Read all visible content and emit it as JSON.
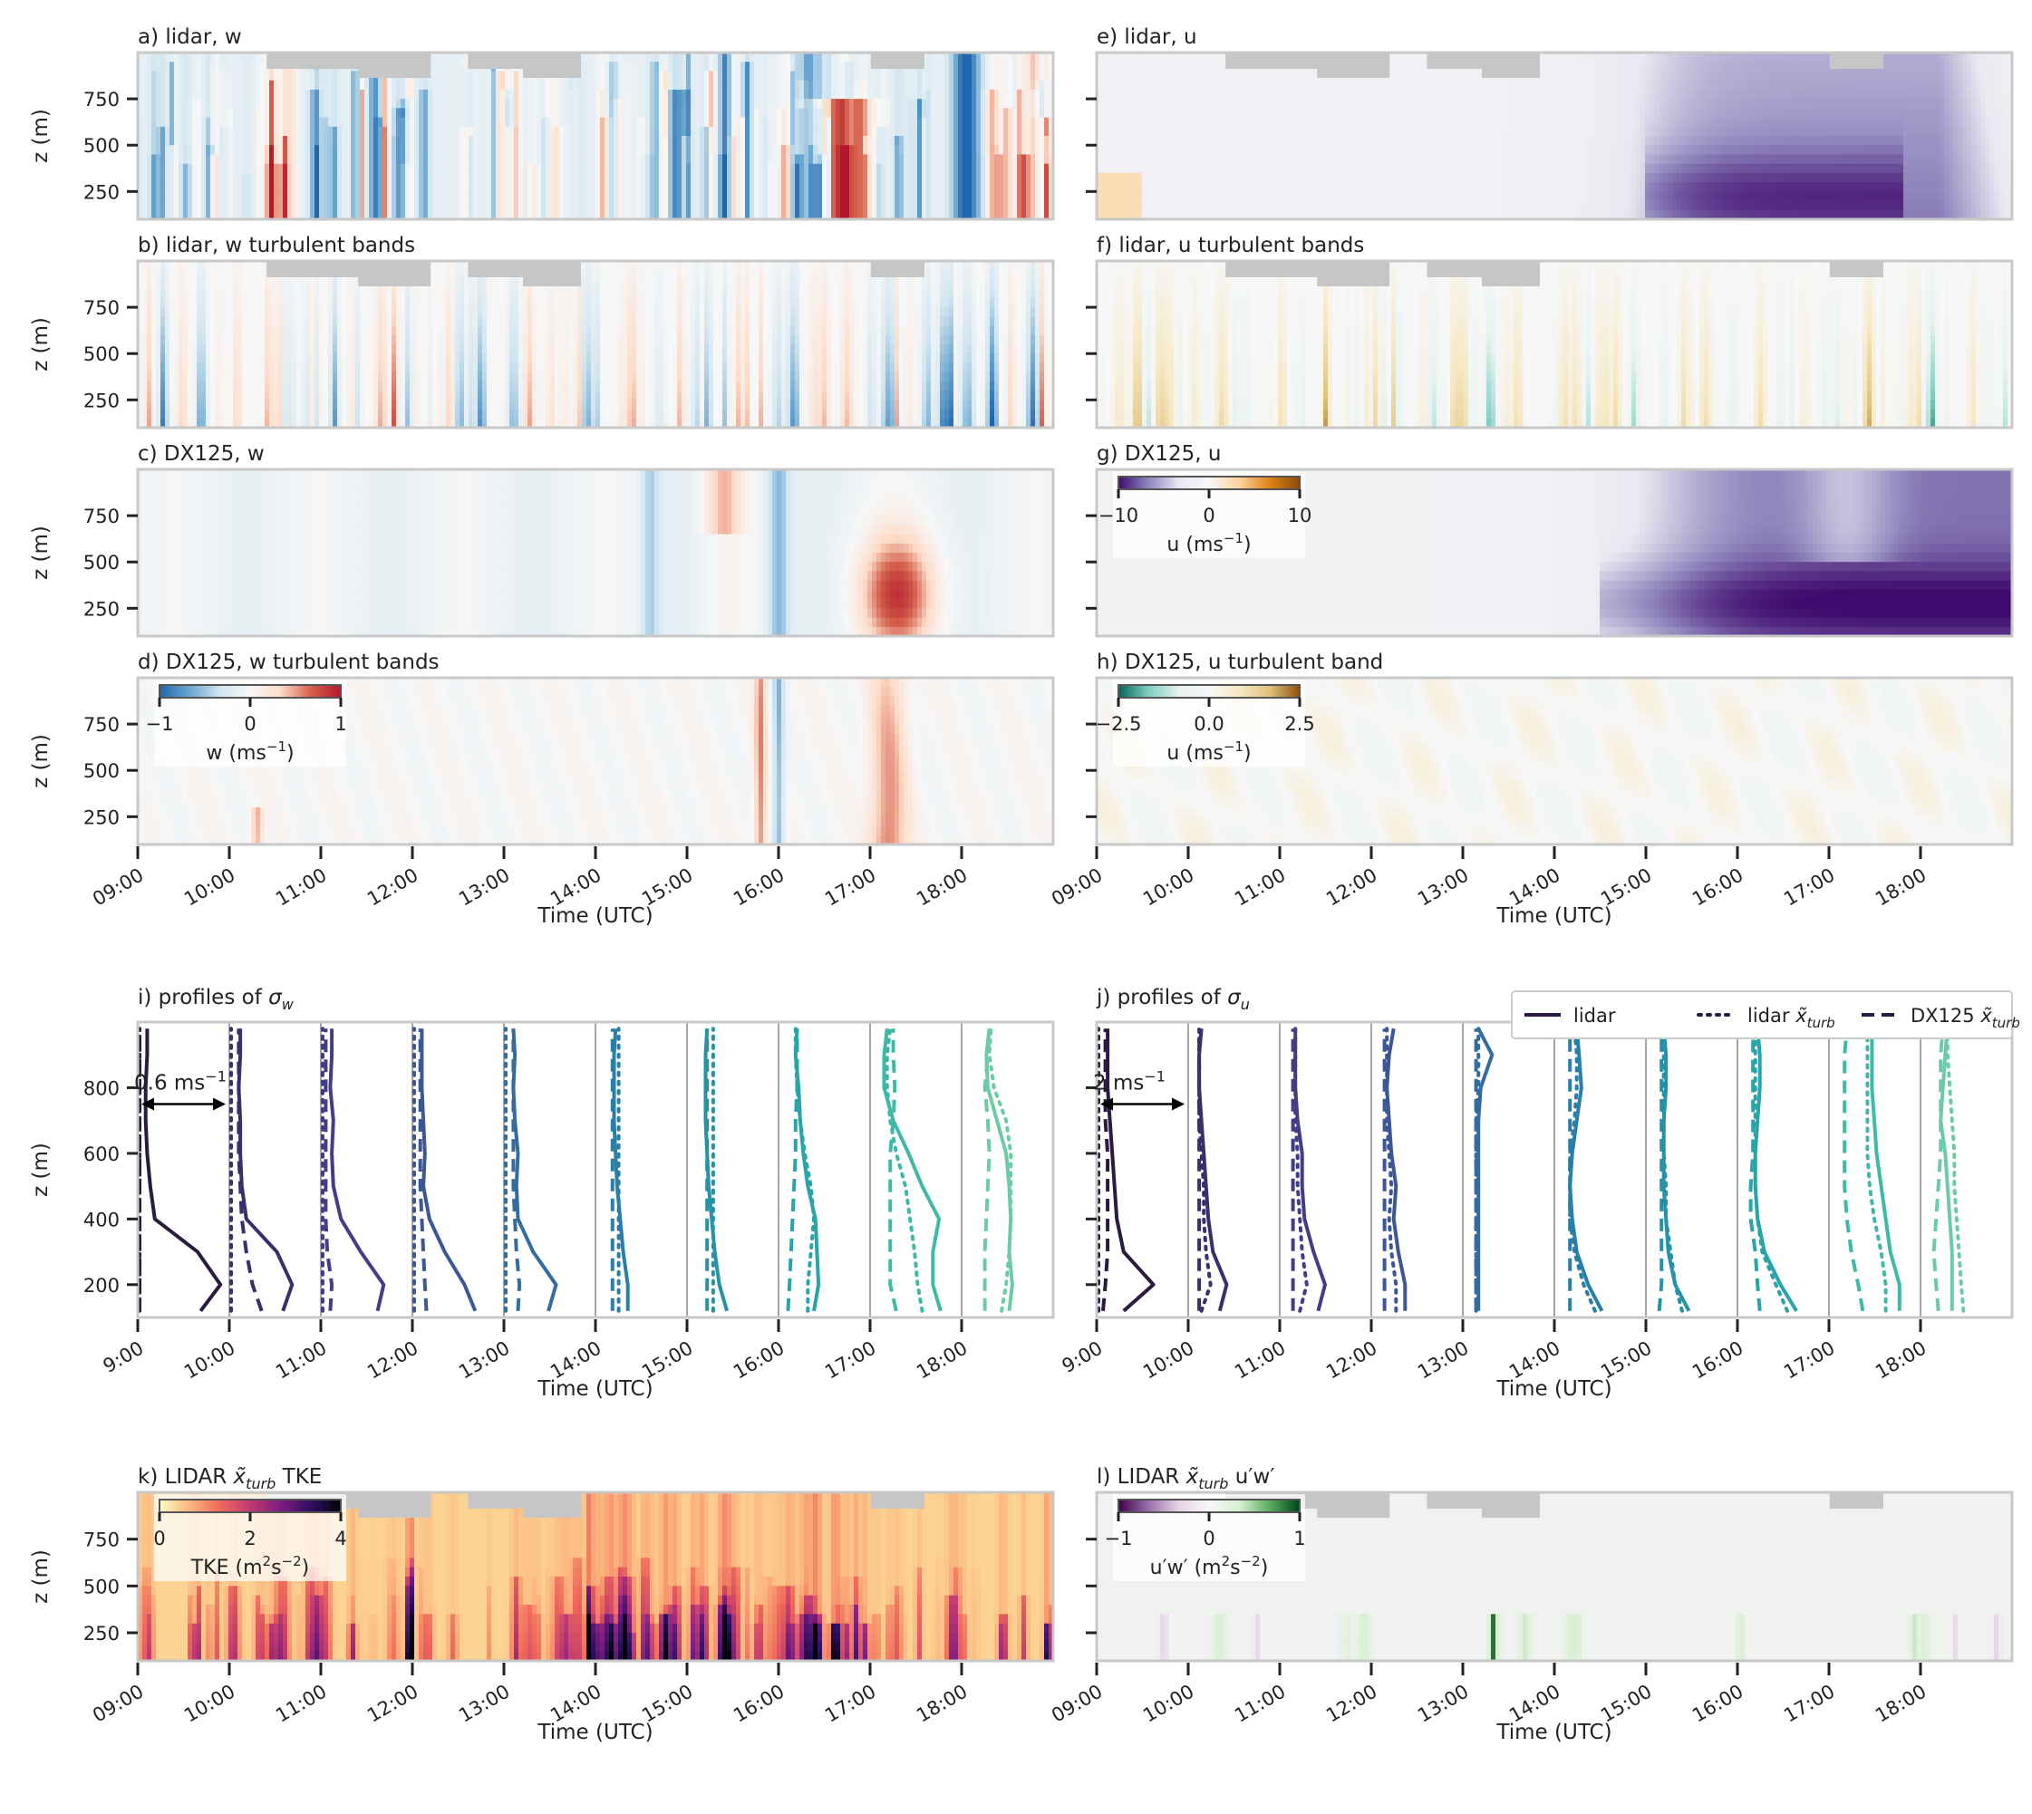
{
  "figure": {
    "time_ticks": [
      "09:00",
      "10:00",
      "11:00",
      "12:00",
      "13:00",
      "14:00",
      "15:00",
      "16:00",
      "17:00",
      "18:00"
    ],
    "time_ticks_profiles": [
      "9:00",
      "10:00",
      "11:00",
      "12:00",
      "13:00",
      "14:00",
      "15:00",
      "16:00",
      "17:00",
      "18:00"
    ],
    "xlabel": "Time (UTC)",
    "ylabel": "z (m)",
    "z_ticks_fields": [
      250,
      500,
      750
    ],
    "z_ticks_profiles": [
      200,
      400,
      600,
      800
    ],
    "colors": {
      "frame": "#c8c8c8",
      "missing": "#c6c6c6"
    }
  },
  "chart_data": [
    {
      "id": "a",
      "type": "heatmap",
      "title": "a) lidar, w",
      "variable": "w",
      "cmap": "RdBu_r",
      "vmin": -1,
      "vmax": 1,
      "xlim": [
        "09:00",
        "19:00"
      ],
      "ylim": [
        100,
        1000
      ]
    },
    {
      "id": "b",
      "type": "heatmap",
      "title": "b) lidar, w turbulent bands",
      "variable": "w",
      "cmap": "RdBu_r",
      "vmin": -1,
      "vmax": 1,
      "xlim": [
        "09:00",
        "19:00"
      ],
      "ylim": [
        100,
        1000
      ]
    },
    {
      "id": "c",
      "type": "heatmap",
      "title": "c) DX125, w",
      "variable": "w",
      "cmap": "RdBu_r",
      "vmin": -1,
      "vmax": 1,
      "xlim": [
        "09:00",
        "19:00"
      ],
      "ylim": [
        100,
        1000
      ]
    },
    {
      "id": "d",
      "type": "heatmap",
      "title": "d) DX125, w turbulent bands",
      "variable": "w",
      "cmap": "RdBu_r",
      "vmin": -1,
      "vmax": 1,
      "xlim": [
        "09:00",
        "19:00"
      ],
      "ylim": [
        100,
        1000
      ],
      "colorbar": {
        "ticks": [
          "−1",
          "0",
          "1"
        ],
        "label": "w (ms",
        "sup": "−1",
        "stops": [
          "#2166ac",
          "#6aa6d0",
          "#d1e5f0",
          "#f7f7f7",
          "#fddbc7",
          "#d6604d",
          "#b2182b"
        ]
      }
    },
    {
      "id": "e",
      "type": "heatmap",
      "title": "e) lidar, u",
      "variable": "u",
      "cmap": "PuOr_r",
      "vmin": -12,
      "vmax": 12,
      "xlim": [
        "09:00",
        "19:00"
      ],
      "ylim": [
        100,
        1000
      ]
    },
    {
      "id": "f",
      "type": "heatmap",
      "title": "f) lidar, u turbulent bands",
      "variable": "u",
      "cmap": "BrBG_r",
      "vmin": -3,
      "vmax": 3,
      "xlim": [
        "09:00",
        "19:00"
      ],
      "ylim": [
        100,
        1000
      ]
    },
    {
      "id": "g",
      "type": "heatmap",
      "title": "g) DX125, u",
      "variable": "u",
      "cmap": "PuOr_r",
      "vmin": -12,
      "vmax": 12,
      "xlim": [
        "09:00",
        "19:00"
      ],
      "ylim": [
        100,
        1000
      ],
      "colorbar": {
        "ticks": [
          "−10",
          "0",
          "10"
        ],
        "label": "u (ms",
        "sup": "−1",
        "stops": [
          "#3f0a6e",
          "#8f86bd",
          "#e9e8f1",
          "#f7f7f7",
          "#fdd49e",
          "#e08214",
          "#8c4a0a"
        ]
      }
    },
    {
      "id": "h",
      "type": "heatmap",
      "title": "h) DX125, u turbulent band",
      "variable": "u",
      "cmap": "BrBG_r",
      "vmin": -3,
      "vmax": 3,
      "xlim": [
        "09:00",
        "19:00"
      ],
      "ylim": [
        100,
        1000
      ],
      "colorbar": {
        "ticks": [
          "−2.5",
          "0.0",
          "2.5"
        ],
        "label": "u (ms",
        "sup": "−1",
        "stops": [
          "#01665e",
          "#80cdc1",
          "#e6f3ef",
          "#f7f7f7",
          "#f6e8c3",
          "#dfc27d",
          "#8c510a"
        ]
      }
    },
    {
      "id": "i",
      "type": "line",
      "title": "i) profiles of",
      "title_sym": "σ",
      "title_sub": "w",
      "annotation": "0.6 ms",
      "annotation_sup": "−1",
      "scale_per_hour": 0.6,
      "ylim": [
        100,
        1000
      ],
      "start_hours": [
        "09:00",
        "10:00",
        "11:00",
        "12:00",
        "13:00",
        "14:00",
        "15:00",
        "16:00",
        "17:00",
        "18:00"
      ],
      "z": [
        120,
        200,
        300,
        400,
        500,
        600,
        700,
        800,
        900,
        980
      ],
      "lidar": [
        [
          0.4,
          0.53,
          0.38,
          0.1,
          0.07,
          0.05,
          0.04,
          0.04,
          0.05,
          0.05
        ],
        [
          0.34,
          0.4,
          0.3,
          0.1,
          0.07,
          0.06,
          0.06,
          0.05,
          0.06,
          0.06
        ],
        [
          0.36,
          0.4,
          0.25,
          0.12,
          0.07,
          0.06,
          0.07,
          0.05,
          0.06,
          0.06
        ],
        [
          0.4,
          0.33,
          0.2,
          0.1,
          0.06,
          0.07,
          0.06,
          0.05,
          0.05,
          0.05
        ],
        [
          0.28,
          0.33,
          0.18,
          0.08,
          0.07,
          0.08,
          0.06,
          0.05,
          0.06,
          0.05
        ],
        [
          0.2,
          0.2,
          0.17,
          0.15,
          0.13,
          0.12,
          0.11,
          0.11,
          0.11,
          0.12
        ],
        [
          0.25,
          0.2,
          0.17,
          0.15,
          0.13,
          0.12,
          0.11,
          0.11,
          0.11,
          0.12
        ],
        [
          0.22,
          0.25,
          0.24,
          0.23,
          0.18,
          0.15,
          0.13,
          0.12,
          0.1,
          0.11
        ],
        [
          0.45,
          0.4,
          0.4,
          0.44,
          0.33,
          0.24,
          0.14,
          0.08,
          0.08,
          0.1
        ],
        [
          0.3,
          0.32,
          0.3,
          0.31,
          0.3,
          0.28,
          0.22,
          0.16,
          0.15,
          0.17
        ]
      ],
      "lidar_turb": [
        [
          0.0,
          0.0,
          0.0,
          0.0,
          0.0,
          0.0,
          0.0,
          0.0,
          0.0,
          0.0
        ],
        [
          0.0,
          0.0,
          0.0,
          0.0,
          0.0,
          0.0,
          0.0,
          0.0,
          0.0,
          0.0
        ],
        [
          0.0,
          0.0,
          0.0,
          0.0,
          0.0,
          0.0,
          0.0,
          0.0,
          0.0,
          0.0
        ],
        [
          0.0,
          0.0,
          0.0,
          0.0,
          0.0,
          0.0,
          0.0,
          0.0,
          0.0,
          0.0
        ],
        [
          0.0,
          0.0,
          0.0,
          0.0,
          0.0,
          0.0,
          0.0,
          0.0,
          0.0,
          0.0
        ],
        [
          0.14,
          0.14,
          0.14,
          0.14,
          0.14,
          0.14,
          0.14,
          0.14,
          0.14,
          0.14
        ],
        [
          0.16,
          0.16,
          0.16,
          0.16,
          0.16,
          0.16,
          0.16,
          0.16,
          0.16,
          0.16
        ],
        [
          0.18,
          0.18,
          0.2,
          0.22,
          0.2,
          0.16,
          0.13,
          0.11,
          0.1,
          0.1
        ],
        [
          0.33,
          0.3,
          0.28,
          0.25,
          0.22,
          0.16,
          0.12,
          0.1,
          0.1,
          0.12
        ],
        [
          0.25,
          0.28,
          0.3,
          0.31,
          0.31,
          0.31,
          0.28,
          0.2,
          0.17,
          0.18
        ]
      ],
      "dx125": [
        [
          0.0,
          0.0,
          0.0,
          0.0,
          0.0,
          0.0,
          0.0,
          0.0,
          0.0,
          0.0
        ],
        [
          0.2,
          0.14,
          0.1,
          0.07,
          0.06,
          0.05,
          0.05,
          0.05,
          0.05,
          0.05
        ],
        [
          0.05,
          0.06,
          0.03,
          0.02,
          0.02,
          0.02,
          0.02,
          0.02,
          0.02,
          0.02
        ],
        [
          0.08,
          0.07,
          0.06,
          0.05,
          0.04,
          0.04,
          0.04,
          0.04,
          0.04,
          0.04
        ],
        [
          0.08,
          0.09,
          0.07,
          0.06,
          0.05,
          0.05,
          0.05,
          0.05,
          0.05,
          0.05
        ],
        [
          0.1,
          0.1,
          0.1,
          0.1,
          0.1,
          0.1,
          0.1,
          0.1,
          0.1,
          0.1
        ],
        [
          0.12,
          0.12,
          0.12,
          0.12,
          0.12,
          0.12,
          0.12,
          0.12,
          0.12,
          0.12
        ],
        [
          0.05,
          0.06,
          0.07,
          0.08,
          0.09,
          0.1,
          0.1,
          0.11,
          0.11,
          0.11
        ],
        [
          0.16,
          0.12,
          0.12,
          0.12,
          0.12,
          0.12,
          0.14,
          0.15,
          0.14,
          0.14
        ],
        [
          0.14,
          0.14,
          0.14,
          0.15,
          0.16,
          0.17,
          0.16,
          0.14,
          0.16,
          0.18
        ]
      ]
    },
    {
      "id": "j",
      "type": "line",
      "title": "j) profiles of",
      "title_sym": "σ",
      "title_sub": "u",
      "annotation": "2 ms",
      "annotation_sup": "−1",
      "scale_per_hour": 2,
      "ylim": [
        100,
        1000
      ],
      "start_hours": [
        "09:00",
        "10:00",
        "11:00",
        "12:00",
        "13:00",
        "14:00",
        "15:00",
        "16:00",
        "17:00",
        "18:00"
      ],
      "z": [
        120,
        200,
        300,
        400,
        500,
        600,
        700,
        800,
        900,
        980
      ],
      "lidar": [
        [
          0.55,
          1.2,
          0.55,
          0.4,
          0.35,
          0.3,
          0.25,
          0.2,
          0.2,
          0.2
        ],
        [
          0.65,
          0.8,
          0.5,
          0.4,
          0.35,
          0.3,
          0.25,
          0.2,
          0.2,
          0.25
        ],
        [
          0.8,
          0.95,
          0.7,
          0.5,
          0.45,
          0.45,
          0.35,
          0.3,
          0.3,
          0.3
        ],
        [
          0.7,
          0.7,
          0.55,
          0.45,
          0.5,
          0.4,
          0.35,
          0.3,
          0.35,
          0.45
        ],
        [
          0.3,
          0.3,
          0.3,
          0.3,
          0.3,
          0.3,
          0.3,
          0.35,
          0.6,
          0.3
        ],
        [
          1.0,
          0.7,
          0.45,
          0.35,
          0.3,
          0.35,
          0.45,
          0.55,
          0.5,
          0.45
        ],
        [
          0.9,
          0.6,
          0.45,
          0.4,
          0.35,
          0.35,
          0.35,
          0.4,
          0.4,
          0.35
        ],
        [
          1.25,
          0.9,
          0.55,
          0.4,
          0.35,
          0.35,
          0.4,
          0.45,
          0.45,
          0.4
        ],
        [
          1.5,
          1.5,
          1.3,
          1.2,
          1.1,
          1.0,
          0.95,
          0.9,
          0.9,
          0.9
        ],
        [
          0.65,
          0.65,
          0.65,
          0.6,
          0.55,
          0.5,
          0.4,
          0.45,
          0.5,
          0.55
        ]
      ],
      "lidar_turb": [
        [
          0.0,
          0.0,
          0.0,
          0.0,
          0.0,
          0.0,
          0.0,
          0.0,
          0.0,
          0.0
        ],
        [
          0.25,
          0.45,
          0.35,
          0.3,
          0.3,
          0.25,
          0.2,
          0.2,
          0.2,
          0.2
        ],
        [
          0.4,
          0.55,
          0.45,
          0.4,
          0.35,
          0.35,
          0.3,
          0.3,
          0.3,
          0.3
        ],
        [
          0.5,
          0.5,
          0.4,
          0.35,
          0.4,
          0.35,
          0.3,
          0.3,
          0.3,
          0.3
        ],
        [
          0.25,
          0.25,
          0.25,
          0.25,
          0.25,
          0.25,
          0.25,
          0.3,
          0.3,
          0.3
        ],
        [
          0.85,
          0.6,
          0.4,
          0.3,
          0.3,
          0.3,
          0.4,
          0.45,
          0.45,
          0.4
        ],
        [
          0.75,
          0.6,
          0.5,
          0.4,
          0.4,
          0.35,
          0.35,
          0.35,
          0.35,
          0.35
        ],
        [
          1.05,
          0.8,
          0.5,
          0.4,
          0.35,
          0.35,
          0.35,
          0.35,
          0.35,
          0.35
        ],
        [
          1.2,
          1.2,
          1.1,
          0.95,
          0.85,
          0.8,
          0.8,
          0.8,
          0.8,
          0.8
        ],
        [
          0.9,
          0.85,
          0.8,
          0.75,
          0.7,
          0.7,
          0.65,
          0.6,
          0.55,
          0.55
        ]
      ],
      "dx125": [
        [
          0.1,
          0.15,
          0.2,
          0.2,
          0.2,
          0.2,
          0.15,
          0.15,
          0.15,
          0.15
        ],
        [
          0.2,
          0.2,
          0.2,
          0.2,
          0.2,
          0.2,
          0.2,
          0.2,
          0.2,
          0.2
        ],
        [
          0.25,
          0.25,
          0.25,
          0.25,
          0.25,
          0.25,
          0.25,
          0.25,
          0.25,
          0.25
        ],
        [
          0.25,
          0.25,
          0.25,
          0.25,
          0.25,
          0.25,
          0.25,
          0.25,
          0.25,
          0.25
        ],
        [
          0.25,
          0.25,
          0.25,
          0.25,
          0.25,
          0.25,
          0.25,
          0.25,
          0.25,
          0.25
        ],
        [
          0.3,
          0.3,
          0.3,
          0.3,
          0.3,
          0.3,
          0.3,
          0.3,
          0.3,
          0.3
        ],
        [
          0.25,
          0.3,
          0.3,
          0.3,
          0.3,
          0.3,
          0.3,
          0.3,
          0.3,
          0.3
        ],
        [
          0.45,
          0.4,
          0.35,
          0.25,
          0.25,
          0.3,
          0.3,
          0.3,
          0.3,
          0.3
        ],
        [
          0.7,
          0.6,
          0.45,
          0.35,
          0.3,
          0.3,
          0.3,
          0.3,
          0.3,
          0.35
        ],
        [
          0.35,
          0.3,
          0.25,
          0.3,
          0.35,
          0.4,
          0.4,
          0.4,
          0.4,
          0.45
        ]
      ],
      "legend": [
        {
          "label": "lidar",
          "style": "solid"
        },
        {
          "label": "lidar ",
          "sym": "x̃",
          "sub": "turb",
          "style": "dotted"
        },
        {
          "label": "DX125 ",
          "sym": "x̃",
          "sub": "turb",
          "style": "dashed"
        }
      ],
      "legend_loc": "upper right"
    },
    {
      "id": "k",
      "type": "heatmap",
      "title": "k) LIDAR ",
      "title_sym": "x̃",
      "title_sub": "turb",
      "title_tail": " TKE",
      "variable": "TKE",
      "cmap": "magma_r",
      "vmin": 0,
      "vmax": 4,
      "xlim": [
        "09:00",
        "19:00"
      ],
      "ylim": [
        100,
        1000
      ],
      "colorbar": {
        "ticks": [
          "0",
          "2",
          "4"
        ],
        "label": "TKE (m",
        "sup": "2",
        "mid": "s",
        "sup2": "−2",
        "stops": [
          "#fcfdbf",
          "#fcb57e",
          "#f06a5b",
          "#c13a70",
          "#7b1d81",
          "#2f1163",
          "#000004"
        ]
      }
    },
    {
      "id": "l",
      "type": "heatmap",
      "title": "l) LIDAR ",
      "title_sym": "x̃",
      "title_sub": "turb",
      "title_tail": " u′w′",
      "variable": "u′w′",
      "cmap": "PRGn",
      "vmin": -1.5,
      "vmax": 1.5,
      "xlim": [
        "09:00",
        "19:00"
      ],
      "ylim": [
        100,
        1000
      ],
      "colorbar": {
        "ticks": [
          "−1",
          "0",
          "1"
        ],
        "label": "u′w′ (m",
        "sup": "2",
        "mid": "s",
        "sup2": "−2",
        "stops": [
          "#40004b",
          "#9970ab",
          "#e7d4e8",
          "#f7f7f7",
          "#d9f0d3",
          "#5aae61",
          "#00441b"
        ]
      }
    }
  ]
}
